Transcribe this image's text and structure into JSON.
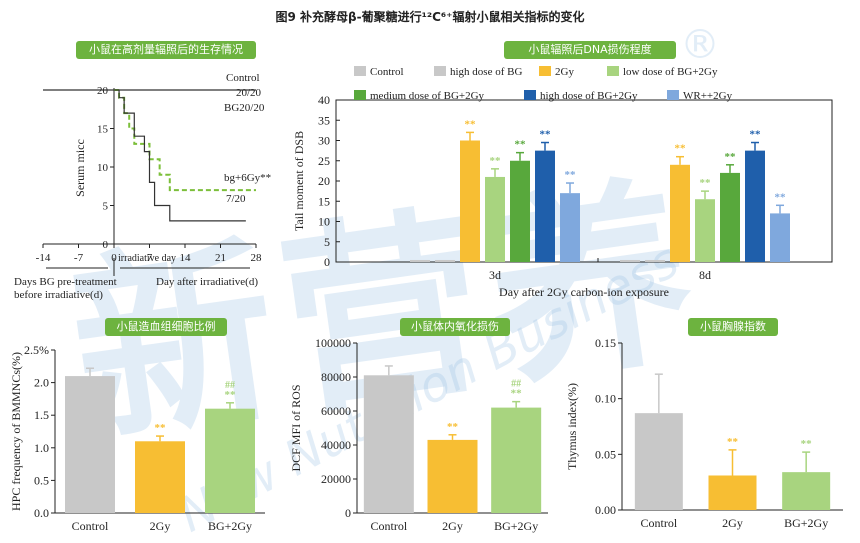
{
  "figure_title": "图9 补充酵母β-葡聚糖进行¹²C⁶⁺辐射小鼠相关指标的变化",
  "watermark": {
    "text": "新营养",
    "latin": "New Nutrition Business",
    "mark": "®"
  },
  "colors": {
    "panel_title_bg": "#6db33f",
    "control": "#c8c8c8",
    "high_bg": "#c8c8c8",
    "two_gy": "#f7be33",
    "low_bg": "#a8d47f",
    "medium_bg": "#58a83c",
    "high_bg_2gy": "#1f5fab",
    "wr": "#7fa8dd"
  },
  "panels": {
    "survival": {
      "title": "小鼠在高剂量辐照后的生存情况",
      "notes": {
        "control": "Control",
        "count_top": "20/20",
        "bg": "BG20/20",
        "bg6": "bg+6Gy**",
        "count_bottom": "7/20",
        "irr": "irradiative day",
        "pre": "Days BG pre-treatment",
        "pre2": "before irradiative(d)",
        "after": "Day after irradiative(d)"
      }
    },
    "dna": {
      "title": "小鼠辐照后DNA损伤程度"
    },
    "hpc": {
      "title": "小鼠造血组细胞比例"
    },
    "ros": {
      "title": "小鼠体内氧化损伤"
    },
    "thymus": {
      "title": "小鼠胸腺指数"
    }
  },
  "chart_data": [
    {
      "type": "line",
      "title": "",
      "xlabel": "",
      "ylabel": "Serum micc",
      "xlim": [
        -14,
        28
      ],
      "ylim": [
        0,
        20
      ],
      "xticks": [
        -14,
        -7,
        0,
        7,
        14,
        21,
        28
      ],
      "yticks": [
        0,
        5,
        10,
        15,
        20
      ],
      "series": [
        {
          "name": "Control",
          "style": "solid",
          "x": [
            -14,
            28
          ],
          "y": [
            20,
            20
          ]
        },
        {
          "name": "bg+6Gy",
          "style": "dashed",
          "x": [
            0,
            1,
            1,
            2,
            2,
            3,
            3,
            4,
            4,
            7,
            7,
            9,
            9,
            11,
            11,
            28
          ],
          "y": [
            20,
            20,
            19,
            19,
            17,
            17,
            15,
            15,
            13,
            13,
            11,
            11,
            9,
            9,
            7,
            7
          ]
        },
        {
          "name": "",
          "style": "solid",
          "x": [
            0,
            1,
            1,
            2,
            2,
            4,
            4,
            6,
            6,
            7,
            7,
            8,
            8,
            11,
            11,
            26
          ],
          "y": [
            20,
            20,
            19,
            19,
            17,
            17,
            14,
            14,
            12,
            12,
            8,
            8,
            5,
            5,
            3,
            3
          ]
        }
      ]
    },
    {
      "type": "bar",
      "title": "",
      "xlabel": "Day after 2Gy carbon-ion exposure",
      "ylabel": "Tail moment of DSB",
      "ylim": [
        0,
        40
      ],
      "yticks": [
        0,
        5,
        10,
        15,
        20,
        25,
        30,
        35,
        40
      ],
      "categories": [
        "3d",
        "8d"
      ],
      "legend_position": "top",
      "series": [
        {
          "name": "Control",
          "values": [
            0.5,
            0.5
          ],
          "errors": [
            0,
            0
          ],
          "sig": [
            "",
            ""
          ]
        },
        {
          "name": "high dose of BG",
          "values": [
            0.5,
            0.5
          ],
          "errors": [
            0,
            0
          ],
          "sig": [
            "",
            ""
          ]
        },
        {
          "name": "2Gy",
          "values": [
            30,
            24
          ],
          "errors": [
            2,
            2
          ],
          "sig": [
            "**",
            "**"
          ]
        },
        {
          "name": "low dose of BG+2Gy",
          "values": [
            21,
            15.5
          ],
          "errors": [
            2,
            2
          ],
          "sig": [
            "**",
            "**"
          ]
        },
        {
          "name": "medium dose of BG+2Gy",
          "values": [
            25,
            22
          ],
          "errors": [
            2,
            2
          ],
          "sig": [
            "**",
            "**"
          ]
        },
        {
          "name": "high dose of BG+2Gy",
          "values": [
            27.5,
            27.5
          ],
          "errors": [
            2,
            2
          ],
          "sig": [
            "**",
            "**"
          ]
        },
        {
          "name": "WR++2Gy",
          "values": [
            17,
            12
          ],
          "errors": [
            2.5,
            2
          ],
          "sig": [
            "**",
            "**"
          ]
        }
      ]
    },
    {
      "type": "bar",
      "title": "",
      "xlabel": "",
      "ylabel": "HPC frequency of BMMNCs(%)",
      "ylim": [
        0,
        2.5
      ],
      "yticks": [
        "0.0",
        "0.5",
        "1.0",
        "1.5",
        "2.0",
        "2.5%"
      ],
      "categories": [
        "Control",
        "2Gy",
        "BG+2Gy"
      ],
      "values": [
        2.1,
        1.1,
        1.6
      ],
      "errors": [
        0.12,
        0.08,
        0.09
      ],
      "sig": [
        "",
        "**",
        "**"
      ],
      "sig2": [
        "",
        "",
        "##"
      ]
    },
    {
      "type": "bar",
      "title": "",
      "xlabel": "",
      "ylabel": "DCF MFI of ROS",
      "ylim": [
        0,
        100000
      ],
      "yticks": [
        "0",
        "20000",
        "40000",
        "60000",
        "80000",
        "100000"
      ],
      "categories": [
        "Control",
        "2Gy",
        "BG+2Gy"
      ],
      "values": [
        81000,
        43000,
        62000
      ],
      "errors": [
        5500,
        3000,
        3500
      ],
      "sig": [
        "",
        "**",
        "**"
      ],
      "sig2": [
        "",
        "",
        "##"
      ]
    },
    {
      "type": "bar",
      "title": "",
      "xlabel": "",
      "ylabel": "Thymus index(%)",
      "ylim": [
        0,
        0.15
      ],
      "yticks": [
        "0.00",
        "0.05",
        "0.10",
        "0.15"
      ],
      "categories": [
        "Control",
        "2Gy",
        "BG+2Gy"
      ],
      "values": [
        0.087,
        0.031,
        0.034
      ],
      "errors": [
        0.035,
        0.023,
        0.018
      ],
      "sig": [
        "",
        "**",
        "**"
      ],
      "sig2": [
        "",
        "",
        ""
      ]
    }
  ]
}
